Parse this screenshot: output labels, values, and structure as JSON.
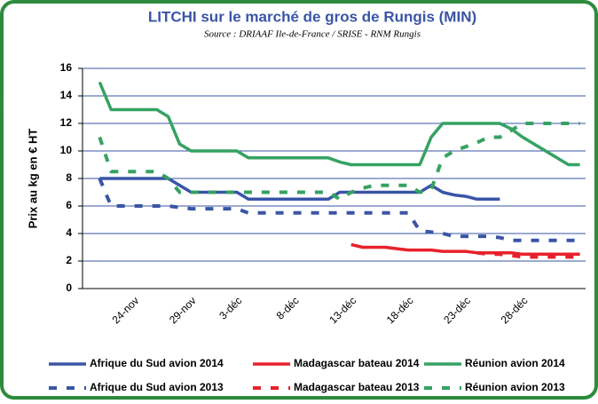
{
  "chart_data": {
    "type": "line",
    "title": "LITCHI sur le marché de gros de Rungis (MIN)",
    "subtitle": "Source : DRIAAF Ile-de-France / SRISE - RNM Rungis",
    "y_label": "Prix au kg en € HT",
    "categories": [
      null,
      null,
      null,
      null,
      "24-nov",
      null,
      null,
      null,
      null,
      "29-nov",
      null,
      null,
      null,
      "3-déc",
      null,
      null,
      null,
      null,
      "8-déc",
      null,
      null,
      null,
      null,
      "13-déc",
      null,
      null,
      null,
      null,
      "18-déc",
      null,
      null,
      null,
      null,
      "23-déc",
      null,
      null,
      null,
      null,
      "28-déc",
      null,
      null,
      null,
      null,
      null
    ],
    "ylim": [
      0,
      16
    ],
    "yticks": [
      0,
      2,
      4,
      6,
      8,
      10,
      12,
      14,
      16
    ],
    "grid": true,
    "series": [
      {
        "name": "Afrique du Sud avion 2014",
        "color": "#3a55a6",
        "dashed": false,
        "values": [
          null,
          8,
          8,
          8,
          8,
          8,
          8,
          8,
          7.5,
          7,
          7,
          7,
          7,
          7,
          6.5,
          6.5,
          6.5,
          6.5,
          6.5,
          6.5,
          6.5,
          6.5,
          7,
          7,
          7,
          7,
          7,
          7,
          7,
          7,
          7.5,
          7,
          6.8,
          6.7,
          6.5,
          6.5,
          6.5,
          null,
          null,
          null,
          null,
          null,
          null,
          null
        ]
      },
      {
        "name": "Madagascar bateau 2014",
        "color": "#e8212a",
        "dashed": false,
        "values": [
          null,
          null,
          null,
          null,
          null,
          null,
          null,
          null,
          null,
          null,
          null,
          null,
          null,
          null,
          null,
          null,
          null,
          null,
          null,
          null,
          null,
          null,
          null,
          3.2,
          3,
          3,
          3,
          2.9,
          2.8,
          2.8,
          2.8,
          2.7,
          2.7,
          2.7,
          2.6,
          2.6,
          2.6,
          2.6,
          2.5,
          2.5,
          2.5,
          2.5,
          2.5,
          2.5
        ]
      },
      {
        "name": "Réunion avion 2014",
        "color": "#35a262",
        "dashed": false,
        "values": [
          null,
          15,
          13,
          13,
          13,
          13,
          13,
          12.5,
          10.5,
          10,
          10,
          10,
          10,
          10,
          9.5,
          9.5,
          9.5,
          9.5,
          9.5,
          9.5,
          9.5,
          9.5,
          9.2,
          9,
          9,
          9,
          9,
          9,
          9,
          9,
          11,
          12,
          12,
          12,
          12,
          12,
          12,
          11.6,
          11,
          10.5,
          10,
          9.5,
          9,
          9
        ]
      },
      {
        "name": "Afrique du Sud avion 2013",
        "color": "#3a55a6",
        "dashed": true,
        "values": [
          null,
          8,
          6,
          6,
          6,
          6,
          6,
          6,
          5.9,
          5.8,
          5.8,
          5.8,
          5.8,
          5.8,
          5.5,
          5.5,
          5.5,
          5.5,
          5.5,
          5.5,
          5.5,
          5.5,
          5.5,
          5.5,
          5.5,
          5.5,
          5.5,
          5.5,
          5.5,
          4.2,
          4.1,
          4,
          3.8,
          3.8,
          3.8,
          3.8,
          3.7,
          3.5,
          3.5,
          3.5,
          3.5,
          3.5,
          3.5,
          3.5
        ]
      },
      {
        "name": "Madagascar bateau 2013",
        "color": "#e8212a",
        "dashed": true,
        "values": [
          null,
          null,
          null,
          null,
          null,
          null,
          null,
          null,
          null,
          null,
          null,
          null,
          null,
          null,
          null,
          null,
          null,
          null,
          null,
          null,
          null,
          null,
          null,
          null,
          null,
          null,
          null,
          null,
          null,
          null,
          null,
          null,
          null,
          null,
          2.6,
          2.5,
          2.5,
          2.4,
          2.3,
          2.3,
          2.3,
          2.3,
          2.3,
          2.3
        ]
      },
      {
        "name": "Réunion avion 2013",
        "color": "#35a262",
        "dashed": true,
        "values": [
          null,
          11,
          8.5,
          8.5,
          8.5,
          8.5,
          8.5,
          8,
          7,
          7,
          7,
          7,
          7,
          7,
          7,
          7,
          7,
          7,
          7,
          7,
          7,
          7,
          6.5,
          7,
          7.3,
          7.5,
          7.5,
          7.5,
          7.5,
          7,
          7.2,
          9.5,
          10,
          10.3,
          10.6,
          11,
          11,
          11.5,
          12,
          12,
          12,
          12,
          12,
          12
        ]
      }
    ]
  }
}
